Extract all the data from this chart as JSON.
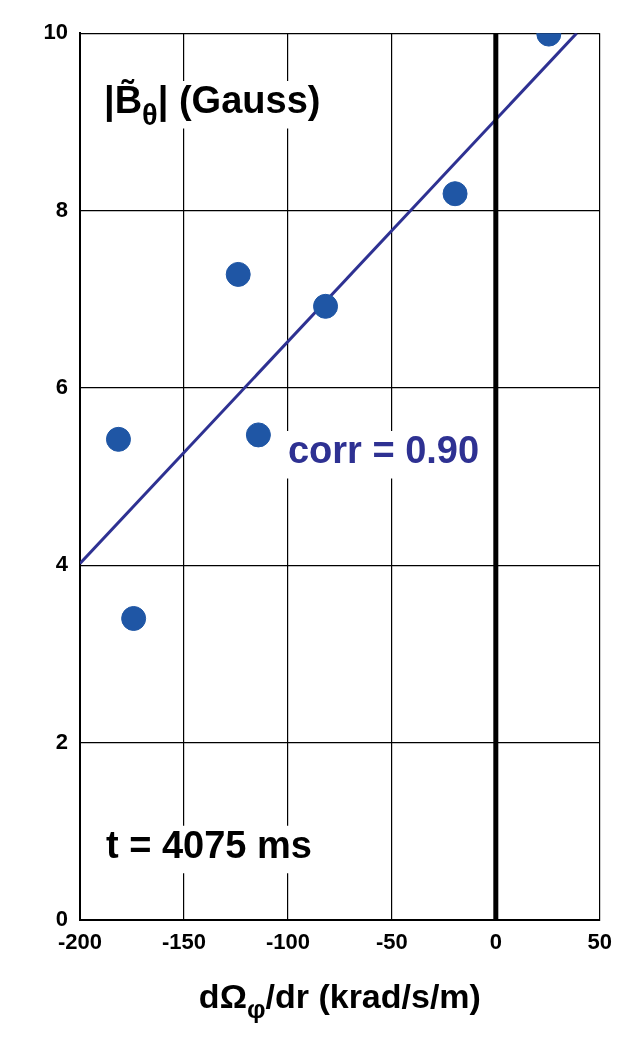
{
  "chart_data": {
    "type": "scatter",
    "ylabel": "|B̃$_{θ}$| (Gauss)",
    "xlabel": "dΩ$_{φ}$/dr (krad/s/m)",
    "annotations": [
      "corr = 0.90",
      "t = 4075 ms"
    ],
    "xlim": [
      -200,
      50
    ],
    "xticks": [
      -200,
      -150,
      -100,
      -50,
      0,
      50
    ],
    "ylim": [
      0,
      10
    ],
    "yticks": [
      0,
      2,
      4,
      6,
      8,
      10
    ],
    "grid": true,
    "line_style": "solid",
    "series": [
      {
        "marker": "circle",
        "color": "#1f56a5",
        "x": [
          -181.5,
          -174.2,
          -123.9,
          -114.2,
          -81.9,
          -19.6,
          25.5
        ],
        "values": [
          5.42,
          3.4,
          7.28,
          5.47,
          6.92,
          8.19,
          9.99
        ]
      },
      {
        "type": "line",
        "color": "#2e3192",
        "x": [
          -200,
          38.9
        ],
        "values": [
          4.02,
          10
        ]
      }
    ],
    "ref_lines": [
      {
        "axis": "x",
        "value": 0,
        "color": "#000000",
        "line_style": "solid"
      }
    ]
  }
}
